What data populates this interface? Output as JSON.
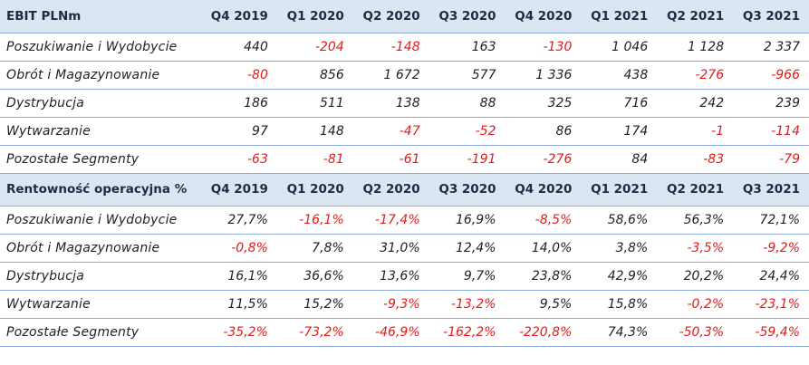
{
  "ebit": {
    "title": "EBIT PLNm",
    "columns": [
      "Q4 2019",
      "Q1 2020",
      "Q2 2020",
      "Q3 2020",
      "Q4 2020",
      "Q1 2021",
      "Q2 2021",
      "Q3 2021"
    ],
    "rows": [
      {
        "label": "Poszukiwanie i Wydobycie",
        "values": [
          "440",
          "-204",
          "-148",
          "163",
          "-130",
          "1 046",
          "1 128",
          "2 337"
        ]
      },
      {
        "label": "Obrót i Magazynowanie",
        "values": [
          "-80",
          "856",
          "1 672",
          "577",
          "1 336",
          "438",
          "-276",
          "-966"
        ]
      },
      {
        "label": "Dystrybucja",
        "values": [
          "186",
          "511",
          "138",
          "88",
          "325",
          "716",
          "242",
          "239"
        ]
      },
      {
        "label": "Wytwarzanie",
        "values": [
          "97",
          "148",
          "-47",
          "-52",
          "86",
          "174",
          "-1",
          "-114"
        ]
      },
      {
        "label": "Pozostałe Segmenty",
        "values": [
          "-63",
          "-81",
          "-61",
          "-191",
          "-276",
          "84",
          "-83",
          "-79"
        ]
      }
    ]
  },
  "margin": {
    "title": "Rentowność operacyjna %",
    "columns": [
      "Q4 2019",
      "Q1 2020",
      "Q2 2020",
      "Q3 2020",
      "Q4 2020",
      "Q1 2021",
      "Q2 2021",
      "Q3 2021"
    ],
    "rows": [
      {
        "label": "Poszukiwanie i Wydobycie",
        "values": [
          "27,7%",
          "-16,1%",
          "-17,4%",
          "16,9%",
          "-8,5%",
          "58,6%",
          "56,3%",
          "72,1%"
        ]
      },
      {
        "label": "Obrót i Magazynowanie",
        "values": [
          "-0,8%",
          "7,8%",
          "31,0%",
          "12,4%",
          "14,0%",
          "3,8%",
          "-3,5%",
          "-9,2%"
        ]
      },
      {
        "label": "Dystrybucja",
        "values": [
          "16,1%",
          "36,6%",
          "13,6%",
          "9,7%",
          "23,8%",
          "42,9%",
          "20,2%",
          "24,4%"
        ]
      },
      {
        "label": "Wytwarzanie",
        "values": [
          "11,5%",
          "15,2%",
          "-9,3%",
          "-13,2%",
          "9,5%",
          "15,8%",
          "-0,2%",
          "-23,1%"
        ]
      },
      {
        "label": "Pozostałe Segmenty",
        "values": [
          "-35,2%",
          "-73,2%",
          "-46,9%",
          "-162,2%",
          "-220,8%",
          "74,3%",
          "-50,3%",
          "-59,4%"
        ]
      }
    ]
  },
  "colors": {
    "header_bg": "#dce6f2",
    "rule": "#8faadc",
    "negative": "#e31b1b",
    "text": "#222222"
  }
}
